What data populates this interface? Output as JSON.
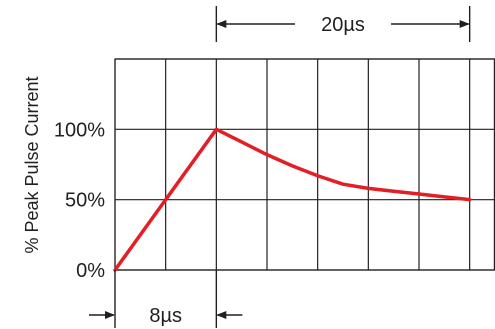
{
  "chart_data": {
    "type": "line",
    "ylabel": "% Peak Pulse Current",
    "y_ticks": [
      {
        "label": "0%",
        "value": 0
      },
      {
        "label": "50%",
        "value": 50
      },
      {
        "label": "100%",
        "value": 100
      }
    ],
    "x_unit": "µs",
    "xlim": [
      0,
      30
    ],
    "ylim": [
      0,
      150
    ],
    "grid": true,
    "series": [
      {
        "color": "#e31e24",
        "points": [
          {
            "x": 0,
            "y": 0
          },
          {
            "x": 8,
            "y": 100
          },
          {
            "x": 10,
            "y": 91
          },
          {
            "x": 12,
            "y": 82
          },
          {
            "x": 14,
            "y": 74
          },
          {
            "x": 16,
            "y": 67
          },
          {
            "x": 18,
            "y": 61
          },
          {
            "x": 20,
            "y": 58
          },
          {
            "x": 22,
            "y": 56
          },
          {
            "x": 24,
            "y": 54
          },
          {
            "x": 26,
            "y": 52
          },
          {
            "x": 28,
            "y": 50
          }
        ]
      }
    ],
    "annotations": [
      {
        "label": "8µs",
        "x_start": 0,
        "x_end": 8,
        "position": "bottom"
      },
      {
        "label": "20µs",
        "x_start": 8,
        "x_end": 28,
        "position": "top"
      }
    ]
  }
}
